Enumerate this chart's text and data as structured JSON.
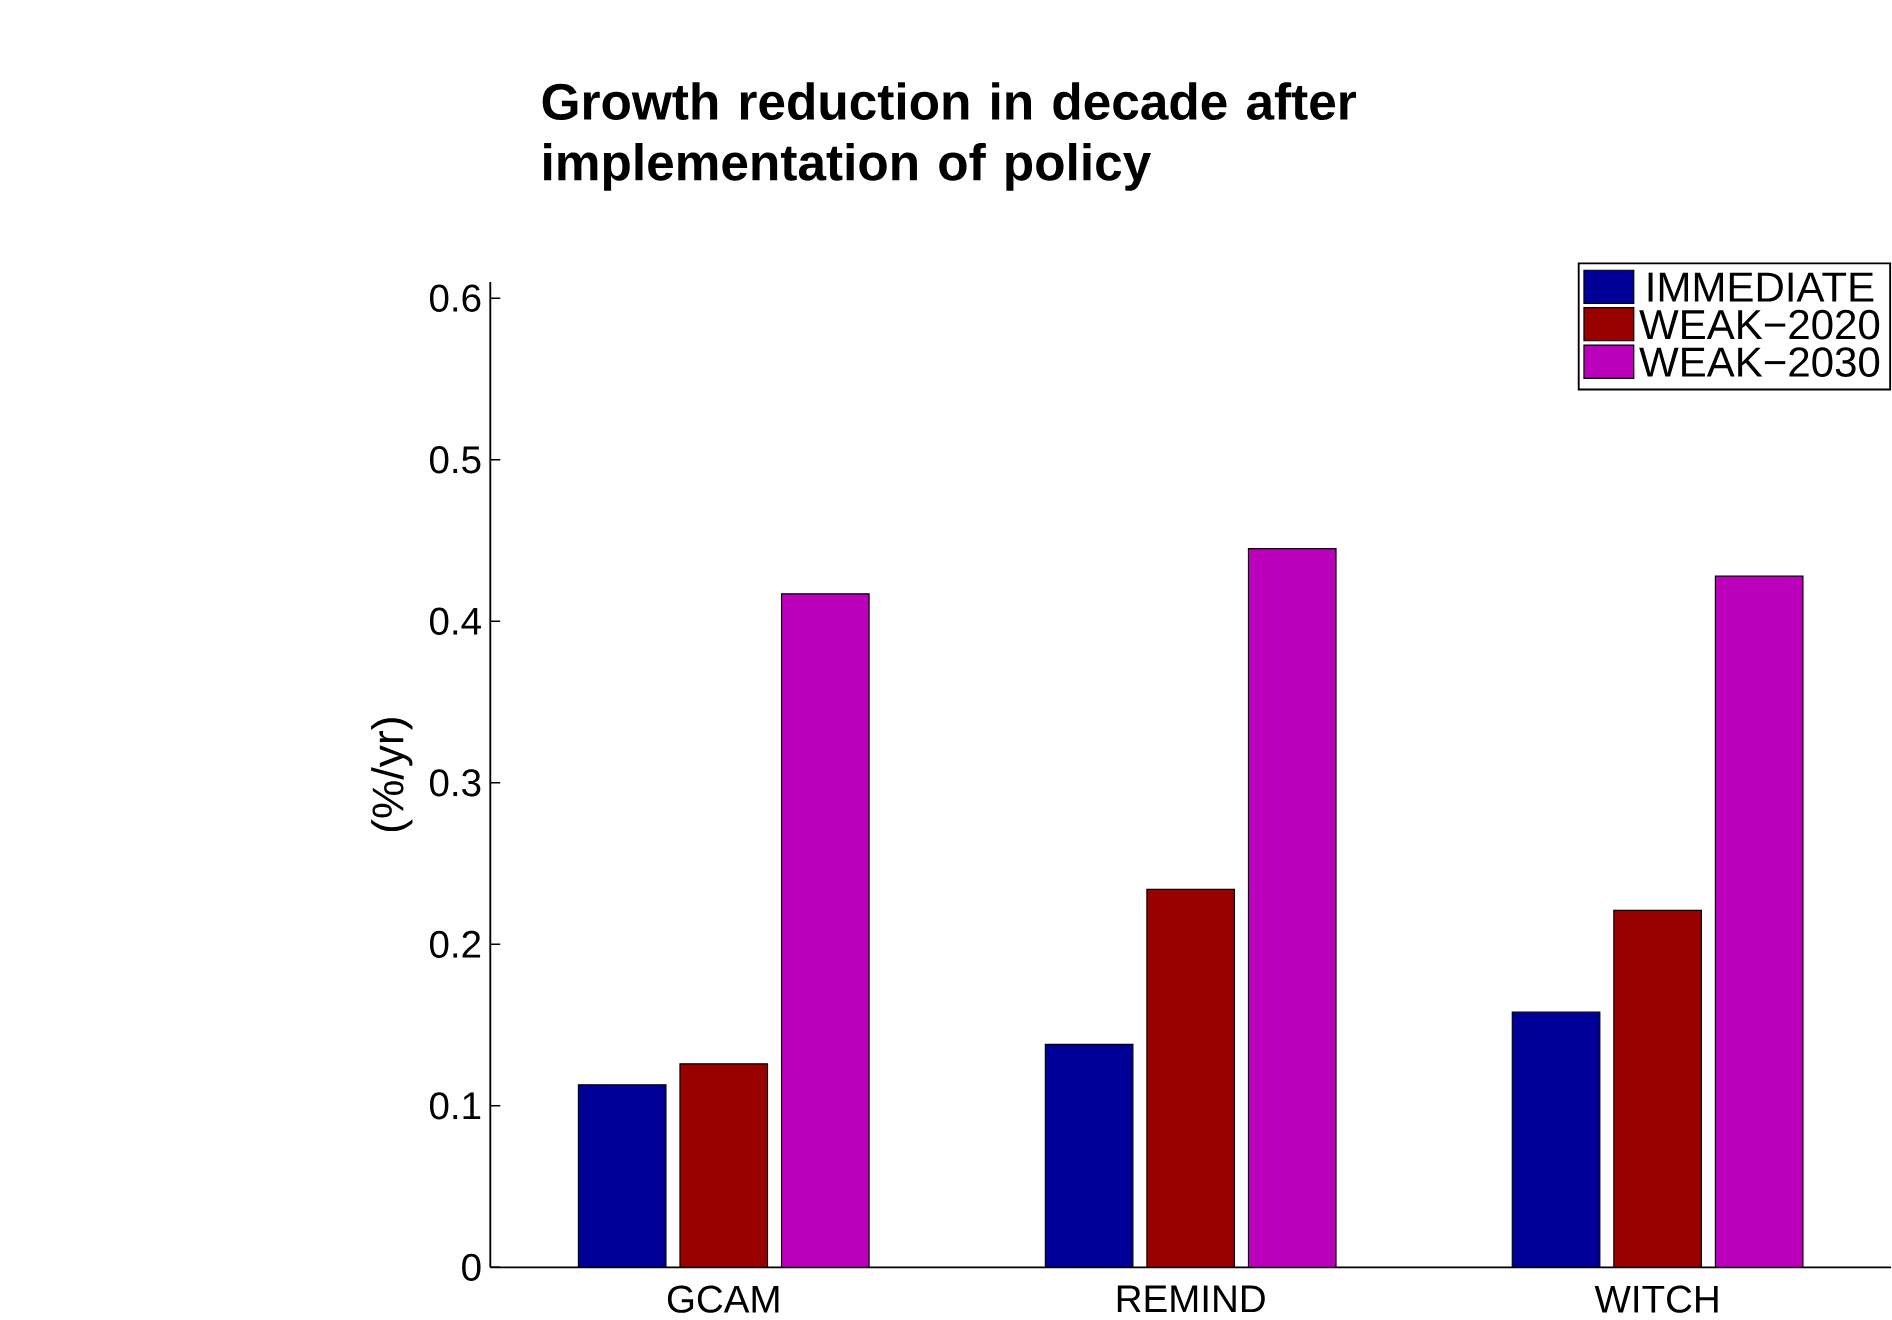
{
  "chart_data": {
    "type": "bar",
    "title": "Growth reduction in decade after implementation of policy",
    "ylabel": "(%/yr)",
    "categories": [
      "GCAM",
      "REMIND",
      "WITCH"
    ],
    "series": [
      {
        "name": "IMMEDIATE",
        "color": "#000099",
        "values": [
          0.113,
          0.138,
          0.158
        ]
      },
      {
        "name": "WEAK−2020",
        "color": "#990000",
        "values": [
          0.126,
          0.234,
          0.221
        ]
      },
      {
        "name": "WEAK−2030",
        "color": "#bb00bb",
        "values": [
          0.417,
          0.445,
          0.428
        ]
      }
    ],
    "ylim": [
      0,
      0.61
    ],
    "yticks": [
      0,
      0.1,
      0.2,
      0.3,
      0.4,
      0.5,
      0.6
    ],
    "legend": "top right"
  }
}
